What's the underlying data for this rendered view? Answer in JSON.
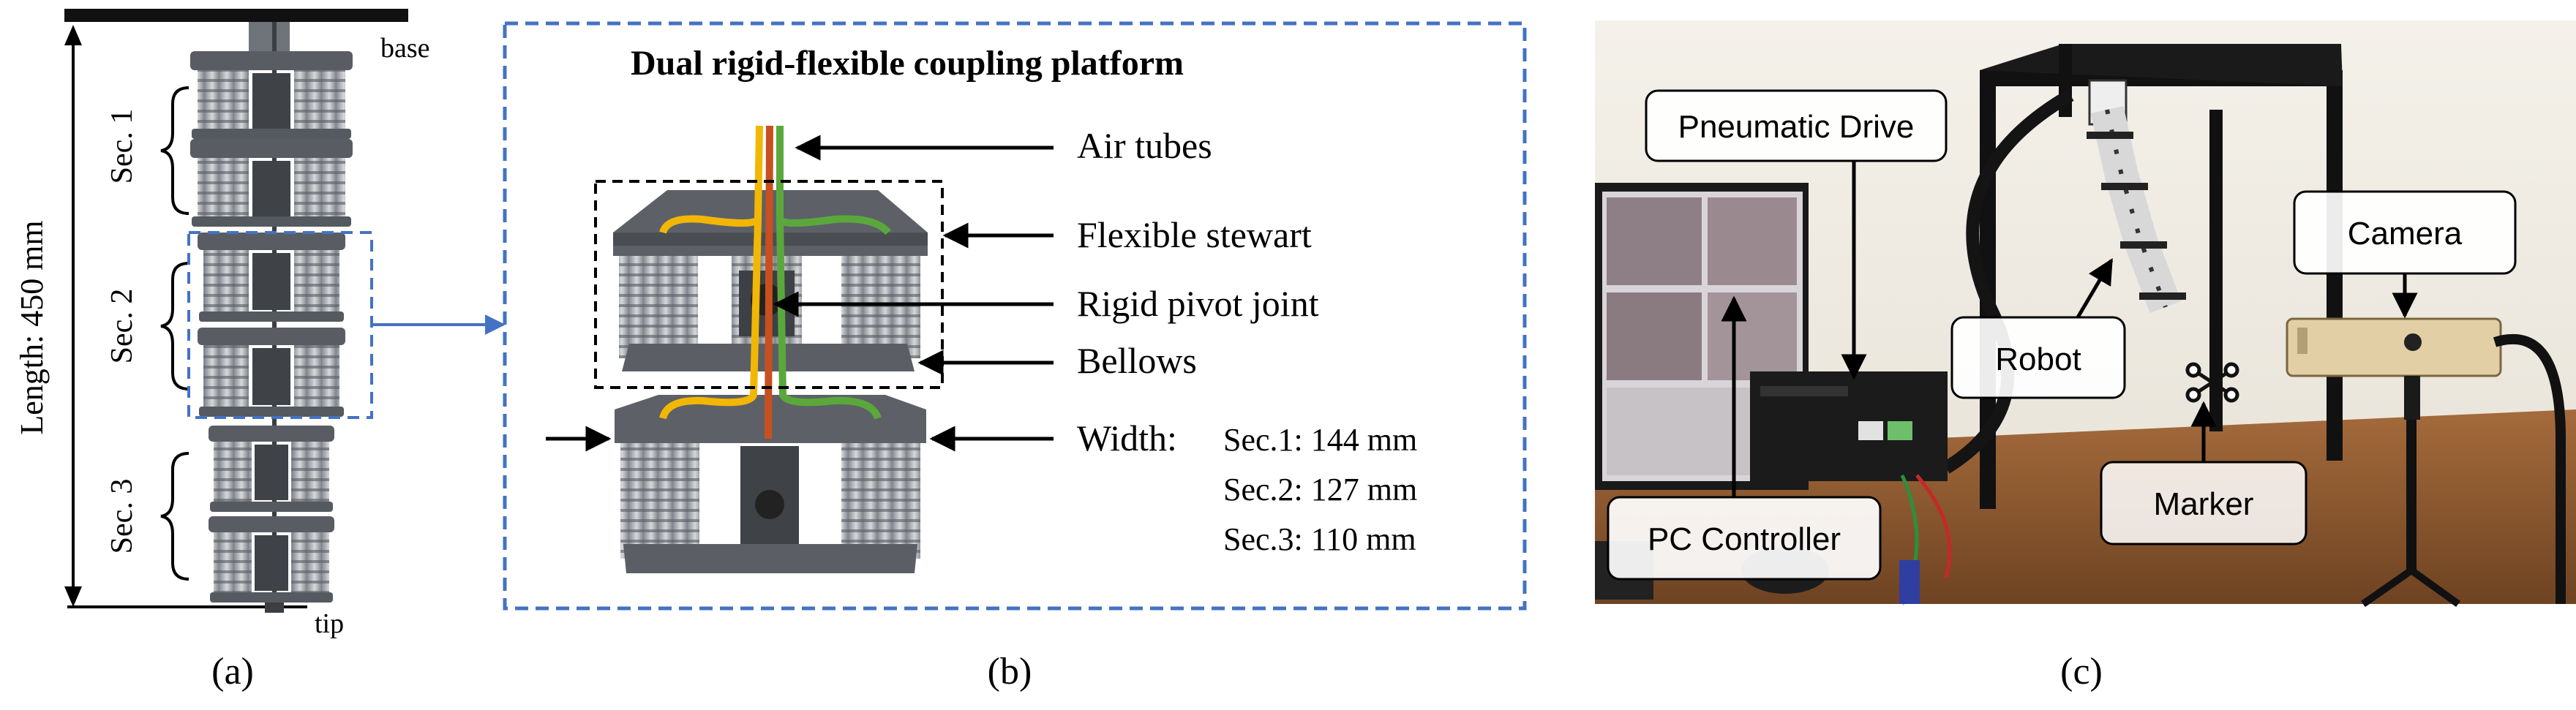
{
  "panel_a": {
    "label": "(a)",
    "base_label": "base",
    "tip_label": "tip",
    "length_label": "Length: 450 mm",
    "sections": [
      "Sec. 1",
      "Sec. 2",
      "Sec. 3"
    ]
  },
  "panel_b": {
    "label": "(b)",
    "title": "Dual rigid-flexible coupling platform",
    "callouts": {
      "air_tubes": "Air tubes",
      "flexible_stewart": "Flexible stewart",
      "rigid_pivot": "Rigid pivot joint",
      "bellows": "Bellows",
      "width": "Width:"
    },
    "widths": [
      "Sec.1: 144 mm",
      "Sec.2: 127 mm",
      "Sec.3: 110 mm"
    ],
    "tube_colors": [
      "#f2b705",
      "#c8501e",
      "#5aa83c"
    ]
  },
  "panel_c": {
    "label": "(c)",
    "callouts": {
      "pneumatic_drive": "Pneumatic Drive",
      "camera": "Camera",
      "robot": "Robot",
      "marker": "Marker",
      "pc_controller": "PC Controller"
    }
  },
  "colors": {
    "dashed_box": "#4472c4",
    "robot_gray": "#6f737a",
    "bellow_gray": "#9a9ea4",
    "frame_black": "#111111"
  }
}
